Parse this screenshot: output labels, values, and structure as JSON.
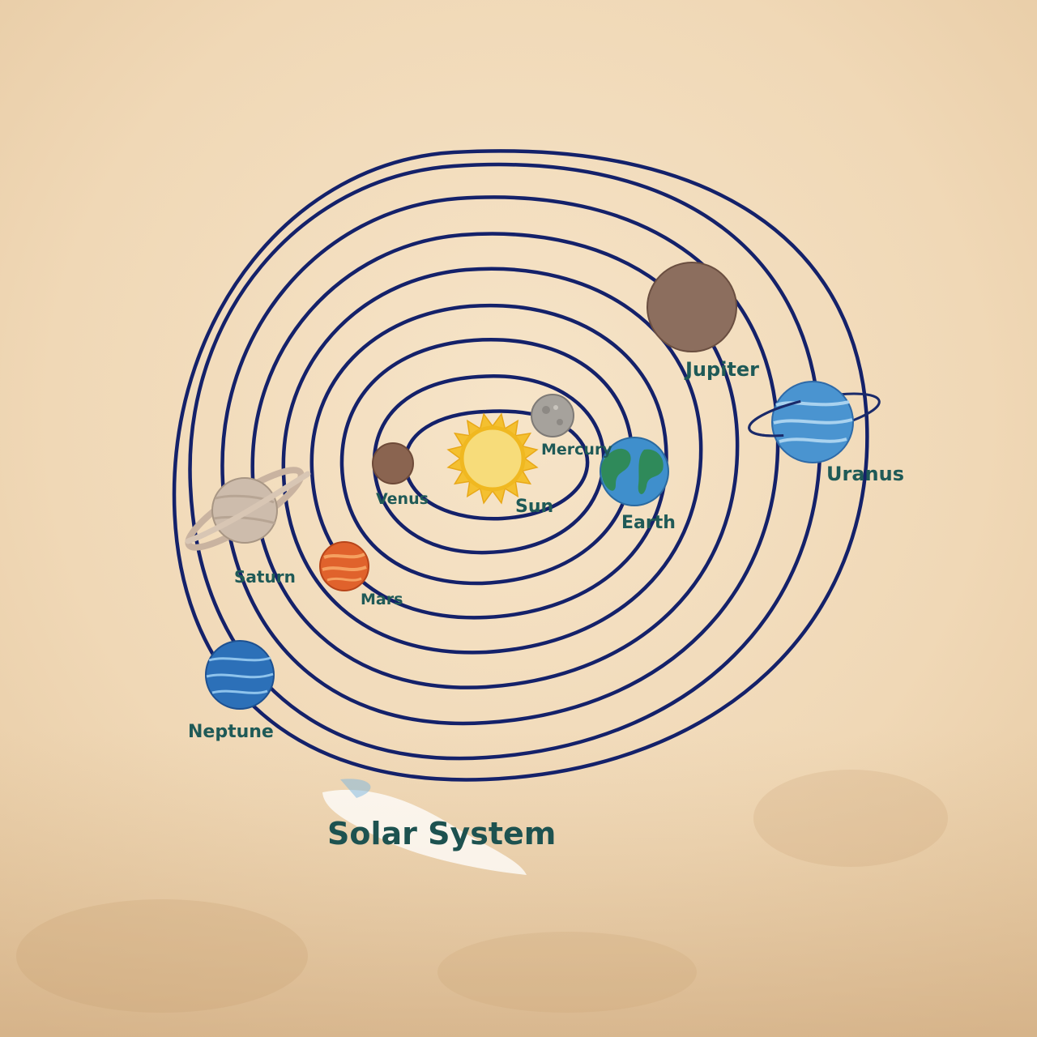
{
  "title": "Solar System",
  "bodies": {
    "sun": {
      "label": "Sun",
      "color": "#f4c030"
    },
    "mercury": {
      "label": "Mercury",
      "color": "#9e9a94"
    },
    "venus": {
      "label": "Venus",
      "color": "#8a6450"
    },
    "earth": {
      "label": "Earth",
      "color": "#3f8fcc"
    },
    "mars": {
      "label": "Mars",
      "color": "#e0622c"
    },
    "jupiter": {
      "label": "Jupiter",
      "color": "#8c6e5e"
    },
    "saturn": {
      "label": "Saturn",
      "color": "#c9b8a8"
    },
    "uranus": {
      "label": "Uranus",
      "color": "#4a94d0"
    },
    "neptune": {
      "label": "Neptune",
      "color": "#2c70b8"
    }
  },
  "colors": {
    "wall": "#f2dcbc",
    "orbit_line": "#14216a",
    "label_text": "#1f5a57",
    "title_highlight": "#ffffff"
  },
  "orbit_count": 9
}
